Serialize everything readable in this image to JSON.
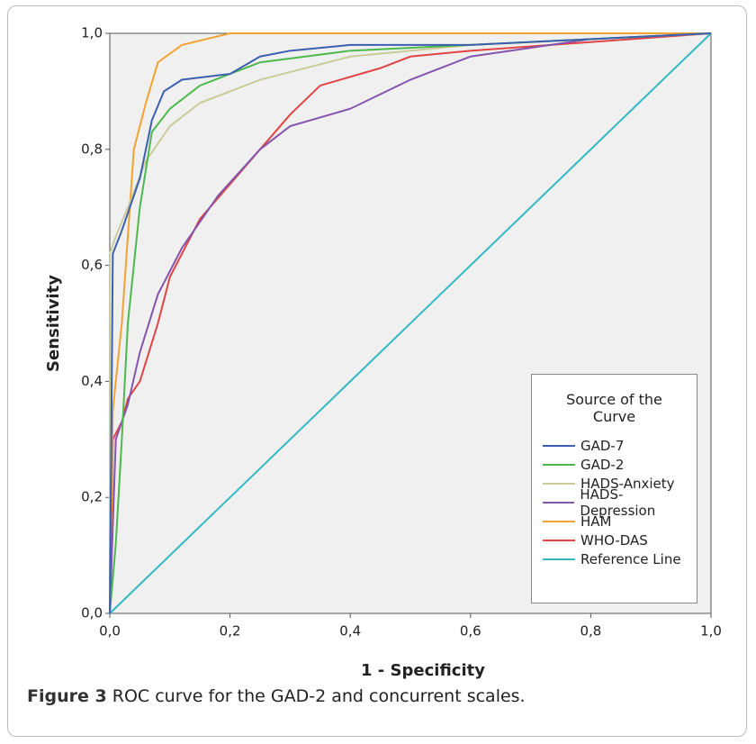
{
  "chart_data": {
    "type": "line",
    "xlabel": "1 - Specificity",
    "ylabel": "Sensitivity",
    "legend_title": "Source of the Curve",
    "legend_position": "lower right",
    "grid": false,
    "xlim": [
      0,
      1
    ],
    "ylim": [
      0,
      1
    ],
    "xticks": [
      {
        "value": 0,
        "label": "0,0"
      },
      {
        "value": 0.2,
        "label": "0,2"
      },
      {
        "value": 0.4,
        "label": "0,4"
      },
      {
        "value": 0.6,
        "label": "0,6"
      },
      {
        "value": 0.8,
        "label": "0,8"
      },
      {
        "value": 1,
        "label": "1,0"
      }
    ],
    "yticks": [
      {
        "value": 0,
        "label": "0,0"
      },
      {
        "value": 0.2,
        "label": "0,2"
      },
      {
        "value": 0.4,
        "label": "0,4"
      },
      {
        "value": 0.6,
        "label": "0,6"
      },
      {
        "value": 0.8,
        "label": "0,8"
      },
      {
        "value": 1,
        "label": "1,0"
      }
    ],
    "series": [
      {
        "name": "GAD-7",
        "color": "#3d5fb0",
        "x": [
          0,
          0.005,
          0.02,
          0.05,
          0.07,
          0.09,
          0.12,
          0.2,
          0.25,
          0.3,
          0.4,
          0.6,
          1
        ],
        "values": [
          0,
          0.62,
          0.66,
          0.75,
          0.85,
          0.9,
          0.92,
          0.93,
          0.96,
          0.97,
          0.98,
          0.98,
          1
        ]
      },
      {
        "name": "GAD-2",
        "color": "#4db84d",
        "x": [
          0,
          0.01,
          0.02,
          0.03,
          0.05,
          0.07,
          0.1,
          0.15,
          0.25,
          0.4,
          0.6,
          1
        ],
        "values": [
          0,
          0.12,
          0.3,
          0.5,
          0.7,
          0.83,
          0.87,
          0.91,
          0.95,
          0.97,
          0.98,
          1
        ]
      },
      {
        "name": "HADS-Anxiety",
        "color": "#cbcb98",
        "x": [
          0,
          0,
          0.01,
          0.03,
          0.06,
          0.1,
          0.15,
          0.25,
          0.4,
          0.6,
          1
        ],
        "values": [
          0,
          0.62,
          0.65,
          0.7,
          0.78,
          0.84,
          0.88,
          0.92,
          0.96,
          0.98,
          1
        ]
      },
      {
        "name": "HADS-Depression",
        "color": "#8554ad",
        "x": [
          0,
          0.01,
          0.03,
          0.05,
          0.08,
          0.12,
          0.18,
          0.25,
          0.3,
          0.4,
          0.5,
          0.6,
          0.8,
          1
        ],
        "values": [
          0,
          0.3,
          0.36,
          0.45,
          0.55,
          0.63,
          0.72,
          0.8,
          0.84,
          0.87,
          0.92,
          0.96,
          0.99,
          1
        ]
      },
      {
        "name": "HAM",
        "color": "#f2a232",
        "x": [
          0,
          0.005,
          0.02,
          0.03,
          0.04,
          0.06,
          0.08,
          0.12,
          0.2,
          1
        ],
        "values": [
          0,
          0.35,
          0.5,
          0.65,
          0.8,
          0.88,
          0.95,
          0.98,
          1,
          1
        ]
      },
      {
        "name": "WHO-DAS",
        "color": "#e04444",
        "x": [
          0,
          0.005,
          0.02,
          0.03,
          0.05,
          0.08,
          0.1,
          0.12,
          0.15,
          0.2,
          0.25,
          0.3,
          0.35,
          0.45,
          0.5,
          0.6,
          1
        ],
        "values": [
          0,
          0.3,
          0.33,
          0.37,
          0.4,
          0.5,
          0.58,
          0.62,
          0.68,
          0.74,
          0.8,
          0.86,
          0.91,
          0.94,
          0.96,
          0.97,
          1
        ]
      },
      {
        "name": "Reference Line",
        "color": "#33b9c2",
        "x": [
          0,
          1
        ],
        "values": [
          0,
          1
        ]
      }
    ]
  },
  "caption": {
    "label": "Figure 3",
    "text": "ROC curve for the GAD-2 and concurrent scales."
  }
}
